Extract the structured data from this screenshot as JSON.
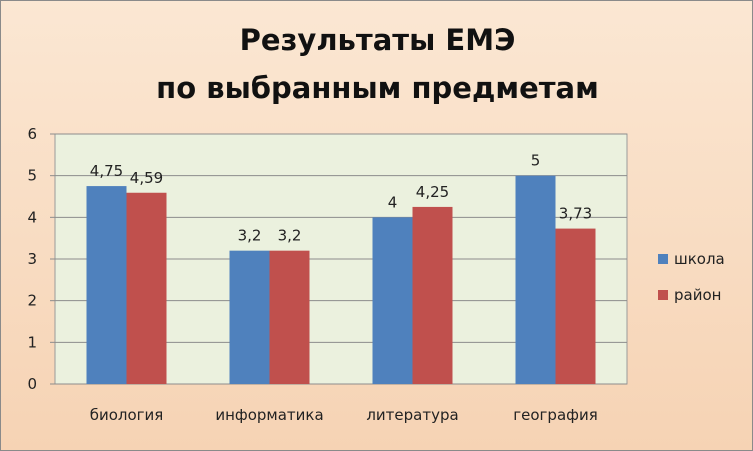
{
  "chart_data": {
    "type": "bar",
    "title_line1": "Результаты ЕМЭ",
    "title_line2": "по выбранным предметам",
    "categories": [
      "биология",
      "информатика",
      "литература",
      "география"
    ],
    "series": [
      {
        "name": "школа",
        "values": [
          4.75,
          3.2,
          4,
          5
        ],
        "labels": [
          "4,75",
          "3,2",
          "4",
          "5"
        ],
        "color": "#4f81bd"
      },
      {
        "name": "район",
        "values": [
          4.59,
          3.2,
          4.25,
          3.73
        ],
        "labels": [
          "4,59",
          "3,2",
          "4,25",
          "3,73"
        ],
        "color": "#c0504d"
      }
    ],
    "ylim": [
      0,
      6
    ],
    "yticks": [
      "0",
      "1",
      "2",
      "3",
      "4",
      "5",
      "6"
    ],
    "grid": true,
    "legend_position": "right",
    "plot_background": "#ebf1de"
  }
}
